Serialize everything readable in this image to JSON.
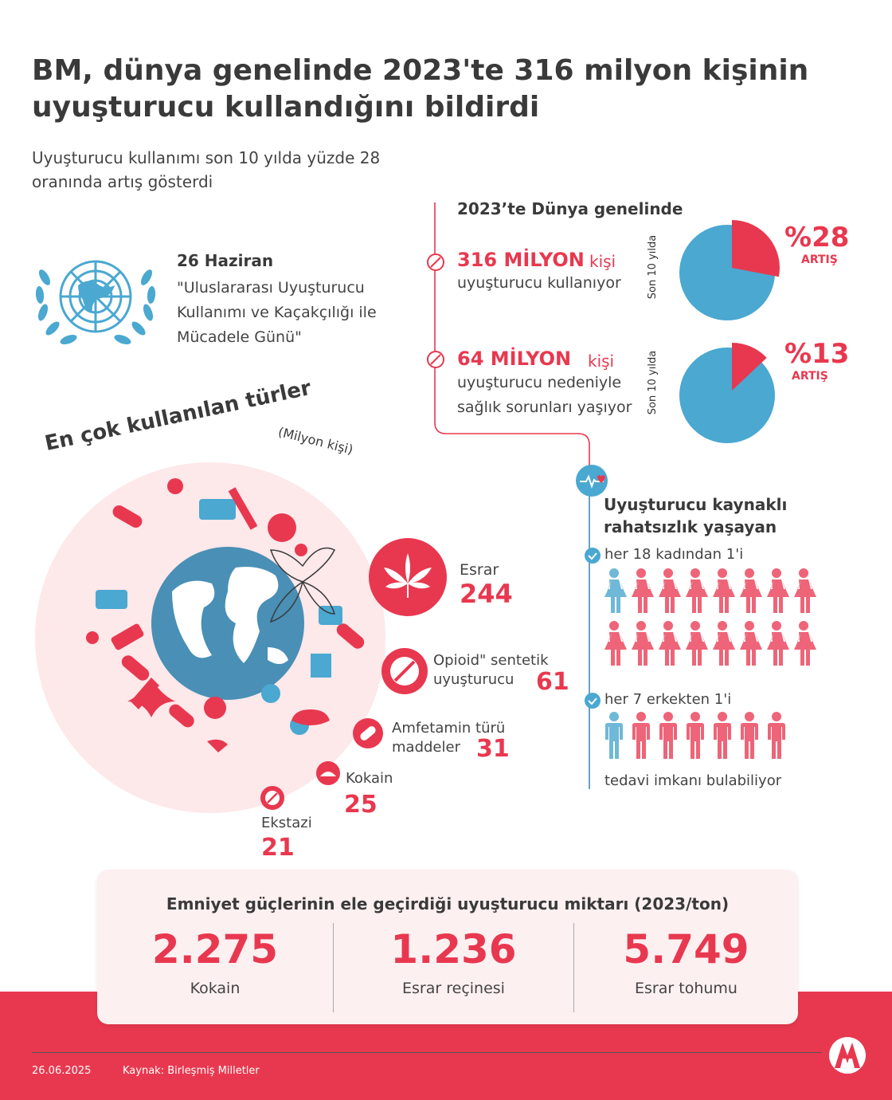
{
  "header": {
    "title": "BM, dünya genelinde 2023'te 316 milyon kişinin uyuşturucu kullandığını bildirdi",
    "subtitle": "Uyuşturucu kullanımı son 10 yılda yüzde 28 oranında artış gösterdi"
  },
  "colors": {
    "accent": "#e8384f",
    "blue": "#4aa8d1",
    "pink_bg": "#fde8ea"
  },
  "event": {
    "date": "26 Haziran",
    "name": "\"Uluslararası Uyuşturucu Kullanımı ve Kaçakçılığı ile Mücadele Günü\"",
    "logo": "un-emblem-icon"
  },
  "world": {
    "heading": "2023’te Dünya genelinde",
    "stat1": {
      "amount": "316 MİLYON",
      "unit": "kişi",
      "desc": "uyuşturucu kullanıyor",
      "pie_label": "Son 10 yılda",
      "pct": "%28",
      "pct_label": "ARTIŞ",
      "fraction": 0.28
    },
    "stat2": {
      "amount": "64 MİLYON",
      "unit": "kişi",
      "desc_line1": "uyuşturucu nedeniyle",
      "desc_line2": "sağlık sorunları yaşıyor",
      "pie_label": "Son 10 yılda",
      "pct": "%13",
      "pct_label": "ARTIŞ",
      "fraction": 0.13
    }
  },
  "types": {
    "heading": "En çok kullanılan türler",
    "unit": "(Milyon kişi)",
    "items": [
      {
        "name": "Esrar",
        "value": "244"
      },
      {
        "name": "Opioid\" sentetik uyuşturucu",
        "value": "61"
      },
      {
        "name": "Amfetamin türü maddeler",
        "value": "31"
      },
      {
        "name": "Kokain",
        "value": "25"
      },
      {
        "name": "Ekstazi",
        "value": "21"
      }
    ]
  },
  "disorder": {
    "heading_line1": "Uyuşturucu kaynaklı",
    "heading_line2": "rahatsızlık yaşayan",
    "women": "her 18 kadından 1'i",
    "men": "her 7 erkekten 1'i",
    "treatment": "tedavi imkanı bulabiliyor",
    "women_ratio": "1 of 18",
    "men_ratio": "1 of 7"
  },
  "seizures": {
    "heading": "Emniyet güçlerinin ele geçirdiği uyuşturucu miktarı (2023/ton)",
    "items": [
      {
        "value": "2.275",
        "label": "Kokain"
      },
      {
        "value": "1.236",
        "label": "Esrar reçinesi"
      },
      {
        "value": "5.749",
        "label": "Esrar tohumu"
      }
    ]
  },
  "footer": {
    "date": "26.06.2025",
    "source": "Kaynak: Birleşmiş Milletler",
    "logo": "AA"
  }
}
